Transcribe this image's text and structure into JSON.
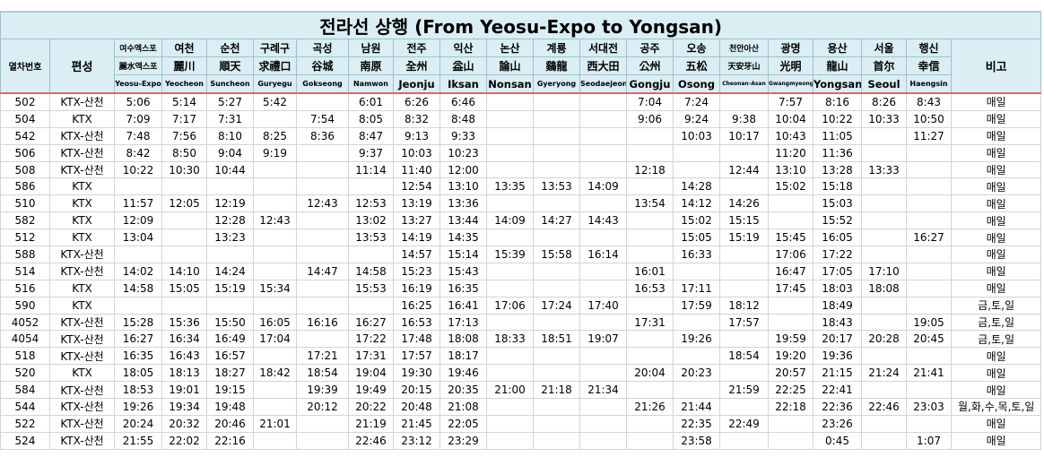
{
  "title": "전라선 상행 (From Yeosu-Expo to Yongsan)",
  "header": {
    "train_no": "열차번호",
    "type": "편성",
    "note": "비고",
    "stations": [
      {
        "ko": "여수엑스포",
        "hanja": "麗水엑스포",
        "en": "Yeosu-Expo"
      },
      {
        "ko": "여천",
        "hanja": "麗川",
        "en": "Yeocheon"
      },
      {
        "ko": "순천",
        "hanja": "順天",
        "en": "Suncheon"
      },
      {
        "ko": "구례구",
        "hanja": "求禮口",
        "en": "Guryegu"
      },
      {
        "ko": "곡성",
        "hanja": "谷城",
        "en": "Gokseong"
      },
      {
        "ko": "남원",
        "hanja": "南原",
        "en": "Namwon"
      },
      {
        "ko": "전주",
        "hanja": "全州",
        "en": "Jeonju"
      },
      {
        "ko": "익산",
        "hanja": "益山",
        "en": "Iksan"
      },
      {
        "ko": "논산",
        "hanja": "論山",
        "en": "Nonsan"
      },
      {
        "ko": "계룡",
        "hanja": "鷄龍",
        "en": "Gyeryong"
      },
      {
        "ko": "서대전",
        "hanja": "西大田",
        "en": "Seodaejeon"
      },
      {
        "ko": "공주",
        "hanja": "公州",
        "en": "Gongju"
      },
      {
        "ko": "오송",
        "hanja": "五松",
        "en": "Osong"
      },
      {
        "ko": "천안아산",
        "hanja": "天安牙山",
        "en": "Cheonan-Asan"
      },
      {
        "ko": "광명",
        "hanja": "光明",
        "en": "Gwangmyeong"
      },
      {
        "ko": "용산",
        "hanja": "龍山",
        "en": "Yongsan"
      },
      {
        "ko": "서울",
        "hanja": "首尔",
        "en": "Seoul"
      },
      {
        "ko": "행신",
        "hanja": "幸信",
        "en": "Haengsin"
      }
    ]
  },
  "rows": [
    {
      "train": 502,
      "type": "KTX-산천",
      "times": [
        "5:06",
        "5:14",
        "5:27",
        "5:42",
        null,
        "6:01",
        "6:26",
        "6:46",
        null,
        null,
        null,
        "7:04",
        "7:24",
        null,
        "7:57",
        "8:16",
        "8:26",
        "8:43"
      ],
      "note": "매일"
    },
    {
      "train": 504,
      "type": "KTX",
      "times": [
        "7:09",
        "7:17",
        "7:31",
        null,
        "7:54",
        "8:05",
        "8:32",
        "8:48",
        null,
        null,
        null,
        "9:06",
        "9:24",
        "9:38",
        "10:04",
        "10:22",
        "10:33",
        "10:50"
      ],
      "note": "매일"
    },
    {
      "train": 542,
      "type": "KTX-산천",
      "times": [
        "7:48",
        "7:56",
        "8:10",
        "8:25",
        "8:36",
        "8:47",
        "9:13",
        "9:33",
        null,
        null,
        null,
        null,
        "10:03",
        "10:17",
        "10:43",
        "11:05",
        null,
        "11:27"
      ],
      "note": "매일"
    },
    {
      "train": 506,
      "type": "KTX-산천",
      "times": [
        "8:42",
        "8:50",
        "9:04",
        "9:19",
        null,
        "9:37",
        "10:03",
        "10:23",
        null,
        null,
        null,
        null,
        null,
        null,
        "11:20",
        "11:36",
        null,
        null
      ],
      "note": "매일"
    },
    {
      "train": 508,
      "type": "KTX-산천",
      "times": [
        "10:22",
        "10:30",
        "10:44",
        null,
        null,
        "11:14",
        "11:40",
        "12:00",
        null,
        null,
        null,
        "12:18",
        null,
        "12:44",
        "13:10",
        "13:28",
        "13:33",
        null
      ],
      "note": "매일"
    },
    {
      "train": 586,
      "type": "KTX",
      "times": [
        null,
        null,
        null,
        null,
        null,
        null,
        "12:54",
        "13:10",
        "13:35",
        "13:53",
        "14:09",
        null,
        "14:28",
        null,
        "15:02",
        "15:18",
        null,
        null
      ],
      "note": "매일"
    },
    {
      "train": 510,
      "type": "KTX",
      "times": [
        "11:57",
        "12:05",
        "12:19",
        null,
        "12:43",
        "12:53",
        "13:19",
        "13:36",
        null,
        null,
        null,
        "13:54",
        "14:12",
        "14:26",
        null,
        "15:03",
        null,
        null
      ],
      "note": "매일"
    },
    {
      "train": 582,
      "type": "KTX",
      "times": [
        "12:09",
        null,
        "12:28",
        "12:43",
        null,
        "13:02",
        "13:27",
        "13:44",
        "14:09",
        "14:27",
        "14:43",
        null,
        "15:02",
        "15:15",
        null,
        "15:52",
        null,
        null
      ],
      "note": "매일"
    },
    {
      "train": 512,
      "type": "KTX",
      "times": [
        "13:04",
        null,
        "13:23",
        null,
        null,
        "13:53",
        "14:19",
        "14:35",
        null,
        null,
        null,
        null,
        "15:05",
        "15:19",
        "15:45",
        "16:05",
        null,
        "16:27"
      ],
      "note": "매일"
    },
    {
      "train": 588,
      "type": "KTX-산천",
      "times": [
        null,
        null,
        null,
        null,
        null,
        null,
        "14:57",
        "15:14",
        "15:39",
        "15:58",
        "16:14",
        null,
        "16:33",
        null,
        "17:06",
        "17:22",
        null,
        null
      ],
      "note": "매일"
    },
    {
      "train": 514,
      "type": "KTX-산천",
      "times": [
        "14:02",
        "14:10",
        "14:24",
        null,
        "14:47",
        "14:58",
        "15:23",
        "15:43",
        null,
        null,
        null,
        "16:01",
        null,
        null,
        "16:47",
        "17:05",
        "17:10",
        null
      ],
      "note": "매일"
    },
    {
      "train": 516,
      "type": "KTX",
      "times": [
        "14:58",
        "15:05",
        "15:19",
        "15:34",
        null,
        "15:53",
        "16:19",
        "16:35",
        null,
        null,
        null,
        "16:53",
        "17:11",
        null,
        "17:45",
        "18:03",
        "18:08",
        null
      ],
      "note": "매일"
    },
    {
      "train": 590,
      "type": "KTX",
      "times": [
        null,
        null,
        null,
        null,
        null,
        null,
        "16:25",
        "16:41",
        "17:06",
        "17:24",
        "17:40",
        null,
        "17:59",
        "18:12",
        null,
        "18:49",
        null,
        null
      ],
      "note": "금,토,일"
    },
    {
      "train": 4052,
      "type": "KTX-산천",
      "times": [
        "15:28",
        "15:36",
        "15:50",
        "16:05",
        "16:16",
        "16:27",
        "16:53",
        "17:13",
        null,
        null,
        null,
        "17:31",
        null,
        "17:57",
        null,
        "18:43",
        null,
        "19:05"
      ],
      "note": "금,토,일"
    },
    {
      "train": 4054,
      "type": "KTX-산천",
      "times": [
        "16:27",
        "16:34",
        "16:49",
        "17:04",
        null,
        "17:22",
        "17:48",
        "18:08",
        "18:33",
        "18:51",
        "19:07",
        null,
        "19:26",
        null,
        "19:59",
        "20:17",
        "20:28",
        "20:45"
      ],
      "note": "금,토,일"
    },
    {
      "train": 518,
      "type": "KTX-산천",
      "times": [
        "16:35",
        "16:43",
        "16:57",
        null,
        "17:21",
        "17:31",
        "17:57",
        "18:17",
        null,
        null,
        null,
        null,
        null,
        "18:54",
        "19:20",
        "19:36",
        null,
        null
      ],
      "note": "매일"
    },
    {
      "train": 520,
      "type": "KTX",
      "times": [
        "18:05",
        "18:13",
        "18:27",
        "18:42",
        "18:54",
        "19:04",
        "19:30",
        "19:46",
        null,
        null,
        null,
        "20:04",
        "20:23",
        null,
        "20:57",
        "21:15",
        "21:24",
        "21:41"
      ],
      "note": "매일"
    },
    {
      "train": 584,
      "type": "KTX-산천",
      "times": [
        "18:53",
        "19:01",
        "19:15",
        null,
        "19:39",
        "19:49",
        "20:15",
        "20:35",
        "21:00",
        "21:18",
        "21:34",
        null,
        null,
        "21:59",
        "22:25",
        "22:41",
        null,
        null
      ],
      "note": "매일"
    },
    {
      "train": 544,
      "type": "KTX-산천",
      "times": [
        "19:26",
        "19:34",
        "19:48",
        null,
        "20:12",
        "20:22",
        "20:48",
        "21:08",
        null,
        null,
        null,
        "21:26",
        "21:44",
        null,
        "22:18",
        "22:36",
        "22:46",
        "23:03"
      ],
      "note": "월,화,수,목,토,일"
    },
    {
      "train": 522,
      "type": "KTX-산천",
      "times": [
        "20:24",
        "20:32",
        "20:46",
        "21:01",
        null,
        "21:19",
        "21:45",
        "22:05",
        null,
        null,
        null,
        null,
        "22:35",
        "22:49",
        null,
        "23:26",
        null,
        null
      ],
      "note": "매일"
    },
    {
      "train": 524,
      "type": "KTX-산천",
      "times": [
        "21:55",
        "22:02",
        "22:16",
        null,
        null,
        "22:46",
        "23:12",
        "23:29",
        null,
        null,
        null,
        null,
        "23:58",
        null,
        null,
        "0:45",
        null,
        "1:07"
      ],
      "note": "매일"
    }
  ]
}
